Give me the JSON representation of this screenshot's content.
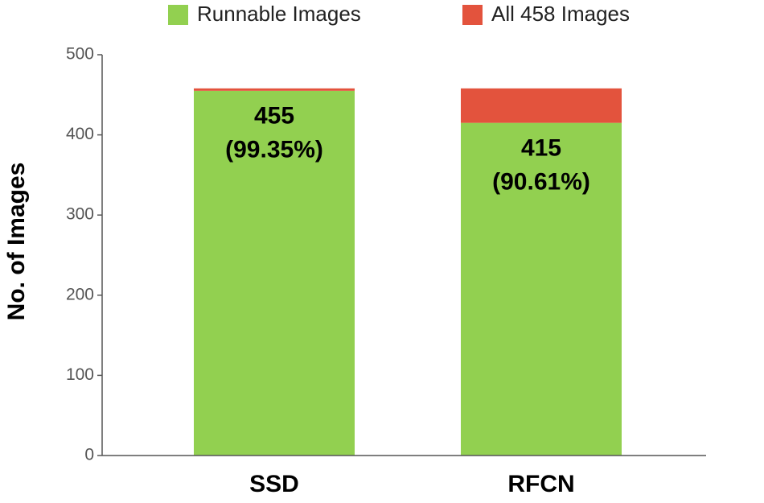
{
  "chart_data": {
    "type": "stacked-bar",
    "y_label": "No. of Images",
    "categories": [
      "SSD",
      "RFCN"
    ],
    "series": [
      {
        "name": "Runnable Images",
        "color": "#92d050",
        "values": [
          455,
          415
        ],
        "value_labels": [
          [
            "455",
            "(99.35%)"
          ],
          [
            "415",
            "(90.61%)"
          ]
        ]
      },
      {
        "name": "All 458 Images",
        "color": "#e3533d",
        "values": [
          3,
          43
        ]
      }
    ],
    "ylim": [
      0,
      500
    ],
    "yticks": [
      0,
      100,
      200,
      300,
      400,
      500
    ],
    "legend": "top"
  }
}
